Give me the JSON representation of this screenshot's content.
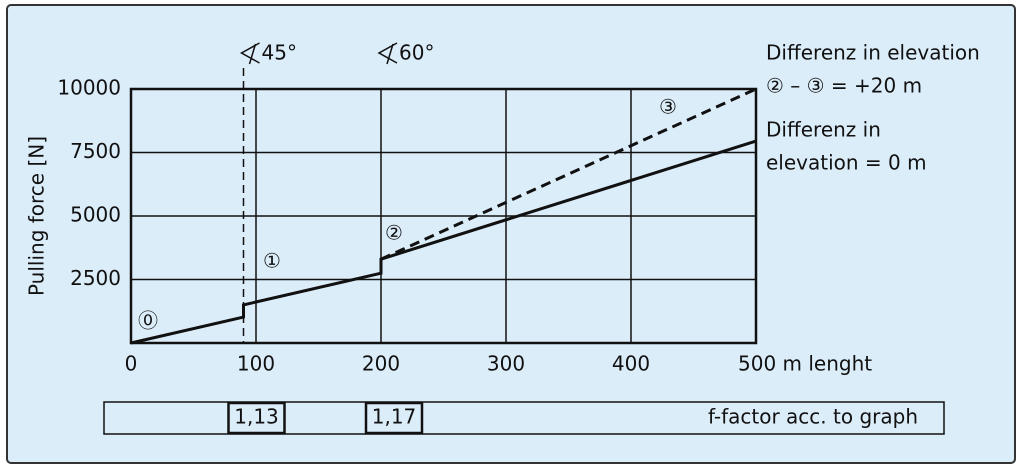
{
  "chart_data": {
    "type": "line",
    "y_label": "Pulling force [N]",
    "xlim": [
      0,
      500
    ],
    "ylim": [
      0,
      10000
    ],
    "xticks": [
      0,
      100,
      200,
      300,
      400,
      {
        "value": 500,
        "label": "500 m lenght"
      }
    ],
    "yticks": [
      2500,
      5000,
      7500,
      10000
    ],
    "grid": true,
    "series": [
      {
        "color": "#111111",
        "dashed": false,
        "x": [
          0,
          90,
          90,
          200,
          200,
          500
        ],
        "values": [
          0,
          1020,
          1500,
          2750,
          3300,
          7950
        ]
      },
      {
        "color": "#111111",
        "dashed": true,
        "x": [
          200,
          500
        ],
        "values": [
          3300,
          10000
        ]
      }
    ],
    "angle_markers": [
      {
        "x": 90,
        "label": "45°"
      },
      {
        "x": 200,
        "label": "60°"
      }
    ],
    "point_labels": [
      "⓪",
      "①",
      "②",
      "③"
    ],
    "notes": [
      "Differenz in elevation",
      "② – ③ = +20 m",
      "Differenz in",
      "elevation = 0 m"
    ],
    "f_factors": [
      "1,13",
      "1,17"
    ],
    "f_factor_caption": "f-factor acc. to graph"
  }
}
